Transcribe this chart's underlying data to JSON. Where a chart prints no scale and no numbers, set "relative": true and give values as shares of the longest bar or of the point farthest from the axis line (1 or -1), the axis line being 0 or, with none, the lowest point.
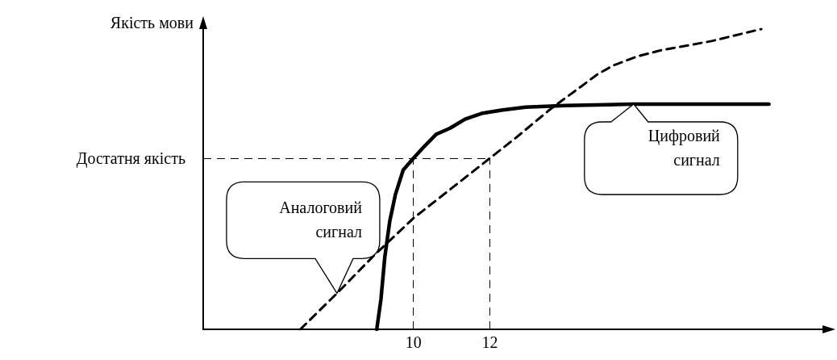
{
  "chart_data": {
    "type": "line",
    "ylabel": "Якість мови",
    "relative": true,
    "xlim": [
      4.5,
      20.7
    ],
    "xticks": [
      10,
      12
    ],
    "grid": false,
    "legend": false,
    "marker": "none",
    "series": [
      {
        "name": "Цифровий сигнал",
        "color": "#000000",
        "line_style": "solid",
        "x": [
          9.04,
          9.15,
          9.25,
          9.38,
          9.53,
          9.73,
          10,
          10.29,
          10.6,
          10.96,
          11.35,
          11.81,
          12.3,
          12.93,
          13.98,
          15.76,
          19.3
        ],
        "values": [
          0,
          0.1,
          0.24,
          0.36,
          0.45,
          0.53,
          0.57,
          0.61,
          0.65,
          0.67,
          0.7,
          0.72,
          0.73,
          0.74,
          0.745,
          0.75,
          0.75
        ]
      },
      {
        "name": "Аналоговий сигнал",
        "color": "#000000",
        "line_style": "dashed",
        "x": [
          7.04,
          8,
          9,
          10,
          11,
          12,
          12.7,
          13.55,
          13.97,
          14.4,
          14.82,
          15.25,
          15.88,
          16.5,
          17.8,
          19.1
        ],
        "values": [
          0,
          0.12,
          0.25,
          0.37,
          0.47,
          0.57,
          0.64,
          0.73,
          0.77,
          0.81,
          0.85,
          0.88,
          0.91,
          0.93,
          0.96,
          1
        ]
      }
    ],
    "ref_lines": [
      {
        "axis": "y",
        "value": 0.57,
        "label": "Достатня якість",
        "line_style": "dashed"
      },
      {
        "axis": "x",
        "value": 10,
        "line_style": "dashed"
      },
      {
        "axis": "x",
        "value": 12,
        "line_style": "dashed"
      }
    ]
  }
}
